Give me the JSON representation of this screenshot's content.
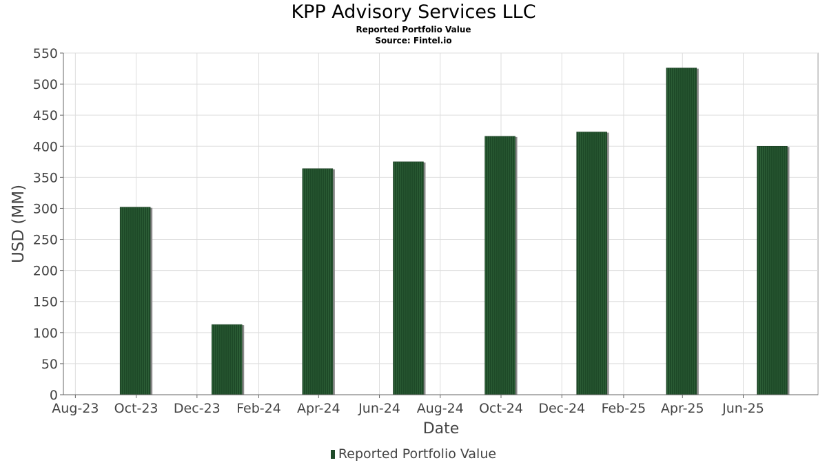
{
  "chart_data": {
    "type": "bar",
    "title": "KPP Advisory Services LLC",
    "subtitle": "Reported Portfolio Value",
    "source": "Source: Fintel.io",
    "xlabel": "Date",
    "ylabel": "USD (MM)",
    "x_range": [
      "2023-07-20",
      "2025-08-15"
    ],
    "x_ticks": [
      {
        "label": "Aug-23",
        "date": "2023-08-01"
      },
      {
        "label": "Oct-23",
        "date": "2023-10-01"
      },
      {
        "label": "Dec-23",
        "date": "2023-12-01"
      },
      {
        "label": "Feb-24",
        "date": "2024-02-01"
      },
      {
        "label": "Apr-24",
        "date": "2024-04-01"
      },
      {
        "label": "Jun-24",
        "date": "2024-06-01"
      },
      {
        "label": "Aug-24",
        "date": "2024-08-01"
      },
      {
        "label": "Oct-24",
        "date": "2024-10-01"
      },
      {
        "label": "Dec-24",
        "date": "2024-12-01"
      },
      {
        "label": "Feb-25",
        "date": "2025-02-01"
      },
      {
        "label": "Apr-25",
        "date": "2025-04-01"
      },
      {
        "label": "Jun-25",
        "date": "2025-06-01"
      }
    ],
    "ylim": [
      0,
      550
    ],
    "y_ticks": [
      0,
      50,
      100,
      150,
      200,
      250,
      300,
      350,
      400,
      450,
      500,
      550
    ],
    "grid": true,
    "legend_position": "bottom",
    "series": [
      {
        "name": "Reported Portfolio Value",
        "color": "#1e4a28",
        "points": [
          {
            "date": "2023-09-30",
            "value": 302
          },
          {
            "date": "2023-12-31",
            "value": 113
          },
          {
            "date": "2024-03-31",
            "value": 364
          },
          {
            "date": "2024-06-30",
            "value": 375
          },
          {
            "date": "2024-09-30",
            "value": 416
          },
          {
            "date": "2024-12-31",
            "value": 423
          },
          {
            "date": "2025-03-31",
            "value": 526
          },
          {
            "date": "2025-06-30",
            "value": 400
          }
        ]
      }
    ]
  }
}
